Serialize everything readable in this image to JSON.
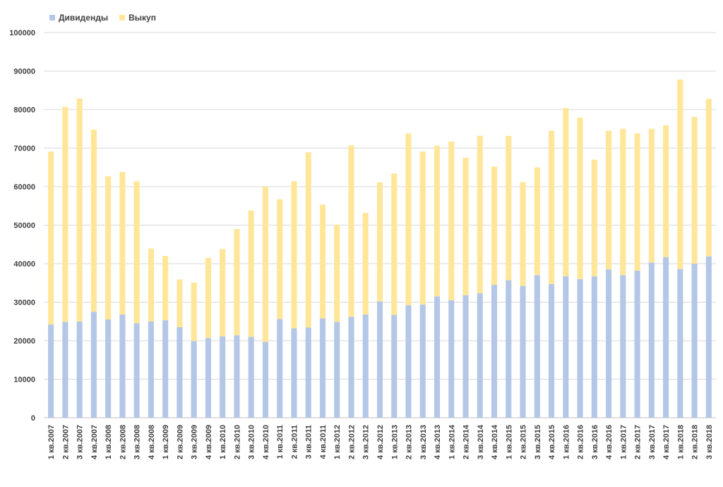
{
  "chart_data": {
    "type": "bar",
    "stacked": true,
    "title": "",
    "xlabel": "",
    "ylabel": "",
    "ylim": [
      0,
      100000
    ],
    "yticks": [
      0,
      10000,
      20000,
      30000,
      40000,
      50000,
      60000,
      70000,
      80000,
      90000,
      100000
    ],
    "grid": true,
    "legend_position": "top-left",
    "categories": [
      "1 кв.2007",
      "2 кв.2007",
      "3 кв.2007",
      "4 кв.2007",
      "1 кв.2008",
      "2 кв.2008",
      "3 кв.2008",
      "4 кв.2008",
      "1 кв.2009",
      "2 кв.2009",
      "3 кв.2009",
      "4 кв.2009",
      "1 кв.2010",
      "2 кв.2010",
      "3 кв.2010",
      "4 кв.2010",
      "1 кв.2011",
      "2 кв.2011",
      "3 кв.2011",
      "4 кв.2011",
      "1 кв.2012",
      "2 кв.2012",
      "3 кв.2012",
      "4 кв.2012",
      "1 кв.2013",
      "2 кв.2013",
      "3 кв.2013",
      "4 кв.2013",
      "1 кв.2014",
      "2 кв.2014",
      "3 кв.2014",
      "4 кв.2014",
      "1 кв.2015",
      "2 кв.2015",
      "3 кв.2015",
      "4 кв.2015",
      "1 кв.2016",
      "2 кв.2016",
      "3 кв.2016",
      "4 кв.2016",
      "1 кв.2017",
      "2 кв.2017",
      "3 кв.2017",
      "4 кв.2017",
      "1 кв.2018",
      "2 кв.2018",
      "3 кв.2018"
    ],
    "series": [
      {
        "name": "Дивиденды",
        "color": "#b4c7e7",
        "values": [
          24200,
          24900,
          25000,
          27500,
          25500,
          26800,
          24500,
          25000,
          25300,
          23500,
          19900,
          20700,
          21100,
          21400,
          21000,
          19700,
          25600,
          23200,
          23400,
          25800,
          24900,
          26200,
          26800,
          30200,
          26700,
          29200,
          29400,
          31500,
          30500,
          31800,
          32300,
          34500,
          35700,
          34200,
          37000,
          34700,
          36700,
          36000,
          36700,
          38500,
          37000,
          38200,
          40300,
          41700,
          38600,
          40000,
          41900
        ]
      },
      {
        "name": "Выкуп",
        "color": "#ffe699",
        "values": [
          44900,
          55800,
          57900,
          47300,
          37200,
          37000,
          36900,
          18900,
          16700,
          12400,
          15200,
          20800,
          22700,
          27600,
          32800,
          40300,
          31100,
          38200,
          45500,
          29500,
          25200,
          44500,
          26400,
          30900,
          36700,
          44600,
          39700,
          39100,
          41200,
          35700,
          40900,
          30700,
          37500,
          27000,
          28000,
          39800,
          43700,
          41900,
          30300,
          36000,
          38000,
          35600,
          34700,
          34200,
          49200,
          38100,
          40900
        ]
      }
    ]
  }
}
